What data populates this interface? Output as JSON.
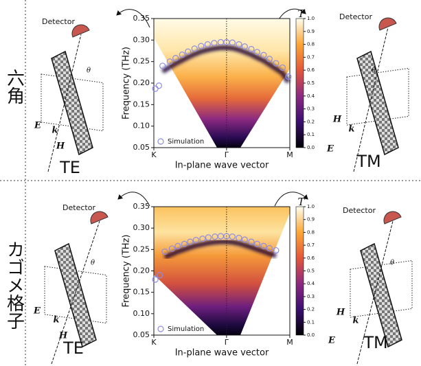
{
  "chart_data": [
    {
      "type": "scatter",
      "y_label": "Frequency (THz)",
      "x_label": "In-plane wave vector",
      "xlim": [
        0,
        1.87
      ],
      "ylim": [
        0.05,
        0.35
      ],
      "xticks": [
        {
          "value": 0,
          "label": "K"
        },
        {
          "value": 1,
          "label": "Γ"
        },
        {
          "value": 1.87,
          "label": "M"
        }
      ],
      "yticks": [
        0.05,
        {
          "value": 0.1,
          "label": "0.10"
        },
        0.15,
        {
          "value": 0.2,
          "label": "0.20"
        },
        0.25,
        {
          "value": 0.3,
          "label": "0.30"
        },
        0.35
      ],
      "legend": "lower left",
      "series": [
        {
          "name": "Simulation",
          "color": "#8c8ce6",
          "x": [
            0.02,
            0.07,
            0.12,
            0.22,
            0.3,
            0.39,
            0.47,
            0.56,
            0.65,
            0.74,
            0.83,
            0.92,
            1.0,
            1.08,
            1.17,
            1.25,
            1.34,
            1.42,
            1.51,
            1.59,
            1.68,
            1.77,
            1.85
          ],
          "values": [
            0.187,
            0.194,
            0.24,
            0.25,
            0.258,
            0.266,
            0.273,
            0.28,
            0.286,
            0.29,
            0.293,
            0.295,
            0.295,
            0.294,
            0.29,
            0.285,
            0.279,
            0.272,
            0.265,
            0.256,
            0.246,
            0.236,
            0.215
          ]
        }
      ],
      "colorbar": {
        "label": "T",
        "lim": [
          0,
          1
        ],
        "ticks": [
          {
            "value": 0,
            "label": "0.0"
          },
          0.1,
          0.2,
          0.3,
          0.4,
          0.5,
          0.6,
          0.7,
          0.8,
          0.9,
          {
            "value": 1,
            "label": "1.0"
          }
        ]
      }
    },
    {
      "type": "scatter",
      "y_label": "Frequency (THz)",
      "x_label": "In-plane wave vector",
      "xlim": [
        0,
        1.87
      ],
      "ylim": [
        0.05,
        0.35
      ],
      "xticks": [
        {
          "value": 0,
          "label": "K"
        },
        {
          "value": 1,
          "label": "Γ"
        },
        {
          "value": 1.87,
          "label": "M"
        }
      ],
      "yticks": [
        0.05,
        {
          "value": 0.1,
          "label": "0.10"
        },
        0.15,
        {
          "value": 0.2,
          "label": "0.20"
        },
        0.25,
        {
          "value": 0.3,
          "label": "0.30"
        },
        0.35
      ],
      "legend": "lower left",
      "series": [
        {
          "name": "Simulation",
          "color": "#8c8ce6",
          "x": [
            0.02,
            0.08,
            0.15,
            0.25,
            0.33,
            0.42,
            0.5,
            0.58,
            0.67,
            0.75,
            0.84,
            0.92,
            1.0,
            1.08,
            1.17,
            1.25,
            1.34,
            1.42,
            1.51,
            1.59,
            1.68
          ],
          "values": [
            0.18,
            0.19,
            0.245,
            0.252,
            0.258,
            0.263,
            0.268,
            0.272,
            0.275,
            0.278,
            0.28,
            0.281,
            0.281,
            0.28,
            0.277,
            0.273,
            0.268,
            0.263,
            0.258,
            0.253,
            0.248
          ]
        }
      ],
      "colorbar": {
        "label": "T",
        "lim": [
          0,
          1
        ],
        "ticks": [
          {
            "value": 0,
            "label": "0.0"
          },
          0.1,
          0.2,
          0.3,
          0.4,
          0.5,
          0.6,
          0.7,
          0.8,
          0.9,
          {
            "value": 1,
            "label": "1.0"
          }
        ]
      }
    }
  ],
  "row_labels": [
    "六角",
    "カゴメ格子"
  ],
  "illustrations": [
    {
      "detector": "Detector",
      "theta": "θ",
      "e": "E",
      "k": "k",
      "h": "H",
      "mode": "TE"
    },
    {
      "detector": "Detector",
      "theta": "θ",
      "e": "E",
      "k": "k",
      "h": "H",
      "mode": "TM"
    },
    {
      "detector": "Detector",
      "theta": "θ",
      "e": "E",
      "k": "k",
      "h": "H",
      "mode": "TE"
    },
    {
      "detector": "Detector",
      "theta": "θ",
      "e": "E",
      "k": "k",
      "h": "H",
      "mode": "TM"
    }
  ]
}
